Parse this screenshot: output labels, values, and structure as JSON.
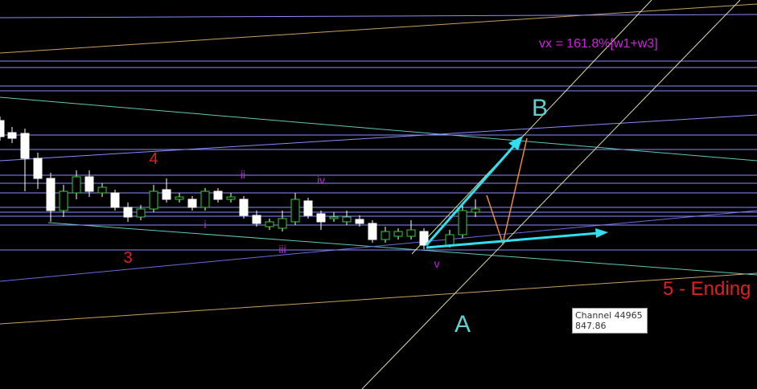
{
  "labels": {
    "wave_4": "4",
    "wave_3": "3",
    "wave_i": "i",
    "wave_ii": "ii",
    "wave_iii": "iii",
    "wave_iv": "iv",
    "wave_v": "v",
    "point_a": "A",
    "point_b": "B",
    "ending": "5 - Ending",
    "projection": "vx = 161.8%[w1+w3]"
  },
  "tooltip": {
    "name": "Channel 44965",
    "value": "847.86"
  }
}
